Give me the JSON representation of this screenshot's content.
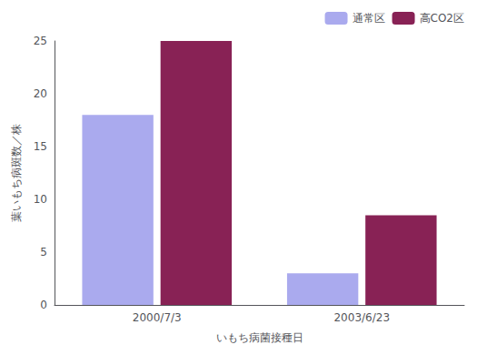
{
  "chart_data": {
    "type": "bar",
    "xlabel": "いもち病菌接種日",
    "ylabel": "葉いもち病斑数／株",
    "categories": [
      "2000/7/3",
      "2003/6/23"
    ],
    "series": [
      {
        "name": "通常区",
        "color": "#aaaaee",
        "values": [
          18,
          3
        ]
      },
      {
        "name": "高CO2区",
        "color": "#882255",
        "values": [
          25,
          8.5
        ]
      }
    ],
    "ylim": [
      0,
      25
    ],
    "yticks": [
      0,
      5,
      10,
      15,
      20,
      25
    ],
    "grid": false,
    "legend": "upper right"
  }
}
